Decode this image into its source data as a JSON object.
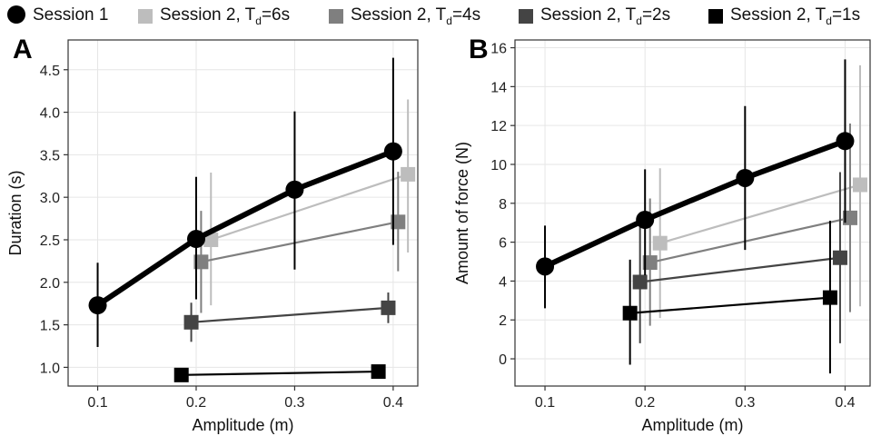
{
  "legend": {
    "items": [
      {
        "label": "Session 1",
        "sub": "",
        "tail": "",
        "color": "#000000",
        "shape": "circle"
      },
      {
        "label": "Session 2, T",
        "sub": "d",
        "tail": "=6s",
        "color": "#bdbdbd",
        "shape": "square"
      },
      {
        "label": "Session 2, T",
        "sub": "d",
        "tail": "=4s",
        "color": "#7f7f7f",
        "shape": "square"
      },
      {
        "label": "Session 2, T",
        "sub": "d",
        "tail": "=2s",
        "color": "#444444",
        "shape": "square"
      },
      {
        "label": "Session 2, T",
        "sub": "d",
        "tail": "=1s",
        "color": "#000000",
        "shape": "square"
      }
    ]
  },
  "chart_data": [
    {
      "type": "line",
      "panel_label": "A",
      "xlabel": "Amplitude (m)",
      "ylabel": "Duration (s)",
      "xlim": [
        0.07,
        0.425
      ],
      "ylim": [
        0.78,
        4.85
      ],
      "xticks": [
        0.1,
        0.2,
        0.3,
        0.4
      ],
      "xtick_labels": [
        "0.1",
        "0.2",
        "0.3",
        "0.4"
      ],
      "yticks": [
        1.0,
        1.5,
        2.0,
        2.5,
        3.0,
        3.5,
        4.0,
        4.5
      ],
      "ytick_labels": [
        "1.0",
        "1.5",
        "2.0",
        "2.5",
        "3.0",
        "3.5",
        "4.0",
        "4.5"
      ],
      "grid": true,
      "series": [
        {
          "name": "Session 1",
          "color": "#000000",
          "shape": "circle",
          "x": [
            0.1,
            0.2,
            0.3,
            0.4
          ],
          "y": [
            1.73,
            2.51,
            3.09,
            3.54
          ],
          "err_low": [
            1.24,
            1.8,
            2.15,
            2.44
          ],
          "err_high": [
            2.23,
            3.24,
            4.01,
            4.64
          ]
        },
        {
          "name": "Session 2, Td=6s",
          "color": "#bdbdbd",
          "shape": "square",
          "x": [
            0.215,
            0.415
          ],
          "y": [
            2.5,
            3.27
          ],
          "err_low": [
            1.73,
            2.35
          ],
          "err_high": [
            3.29,
            4.15
          ]
        },
        {
          "name": "Session 2, Td=4s",
          "color": "#7f7f7f",
          "shape": "square",
          "x": [
            0.205,
            0.405
          ],
          "y": [
            2.24,
            2.71
          ],
          "err_low": [
            1.64,
            2.13
          ],
          "err_high": [
            2.84,
            3.3
          ]
        },
        {
          "name": "Session 2, Td=2s",
          "color": "#444444",
          "shape": "square",
          "x": [
            0.195,
            0.395
          ],
          "y": [
            1.53,
            1.7
          ],
          "err_low": [
            1.3,
            1.52
          ],
          "err_high": [
            1.76,
            1.88
          ]
        },
        {
          "name": "Session 2, Td=1s",
          "color": "#000000",
          "shape": "square",
          "x": [
            0.185,
            0.385
          ],
          "y": [
            0.91,
            0.95
          ],
          "err_low": [
            0.89,
            0.93
          ],
          "err_high": [
            0.93,
            0.97
          ]
        }
      ]
    },
    {
      "type": "line",
      "panel_label": "B",
      "xlabel": "Amplitude (m)",
      "ylabel": "Amount of force (N)",
      "xlim": [
        0.07,
        0.425
      ],
      "ylim": [
        -1.4,
        16.4
      ],
      "xticks": [
        0.1,
        0.2,
        0.3,
        0.4
      ],
      "xtick_labels": [
        "0.1",
        "0.2",
        "0.3",
        "0.4"
      ],
      "yticks": [
        0,
        2,
        4,
        6,
        8,
        10,
        12,
        14,
        16
      ],
      "ytick_labels": [
        "0",
        "2",
        "4",
        "6",
        "8",
        "10",
        "12",
        "14",
        "16"
      ],
      "grid": true,
      "series": [
        {
          "name": "Session 1",
          "color": "#000000",
          "shape": "circle",
          "x": [
            0.1,
            0.2,
            0.3,
            0.4
          ],
          "y": [
            4.75,
            7.15,
            9.3,
            11.2
          ],
          "err_low": [
            2.6,
            4.3,
            5.6,
            7.0
          ],
          "err_high": [
            6.85,
            9.75,
            13.0,
            15.4
          ]
        },
        {
          "name": "Session 2, Td=6s",
          "color": "#bdbdbd",
          "shape": "square",
          "x": [
            0.215,
            0.415
          ],
          "y": [
            5.95,
            8.95
          ],
          "err_low": [
            2.1,
            2.7
          ],
          "err_high": [
            9.8,
            15.1
          ]
        },
        {
          "name": "Session 2, Td=4s",
          "color": "#7f7f7f",
          "shape": "square",
          "x": [
            0.205,
            0.405
          ],
          "y": [
            4.95,
            7.25
          ],
          "err_low": [
            1.7,
            2.4
          ],
          "err_high": [
            8.25,
            12.1
          ]
        },
        {
          "name": "Session 2, Td=2s",
          "color": "#444444",
          "shape": "square",
          "x": [
            0.195,
            0.395
          ],
          "y": [
            3.95,
            5.2
          ],
          "err_low": [
            0.8,
            0.8
          ],
          "err_high": [
            7.1,
            9.6
          ]
        },
        {
          "name": "Session 2, Td=1s",
          "color": "#000000",
          "shape": "square",
          "x": [
            0.185,
            0.385
          ],
          "y": [
            2.35,
            3.15
          ],
          "err_low": [
            -0.3,
            -0.75
          ],
          "err_high": [
            5.1,
            7.1
          ]
        }
      ]
    }
  ]
}
